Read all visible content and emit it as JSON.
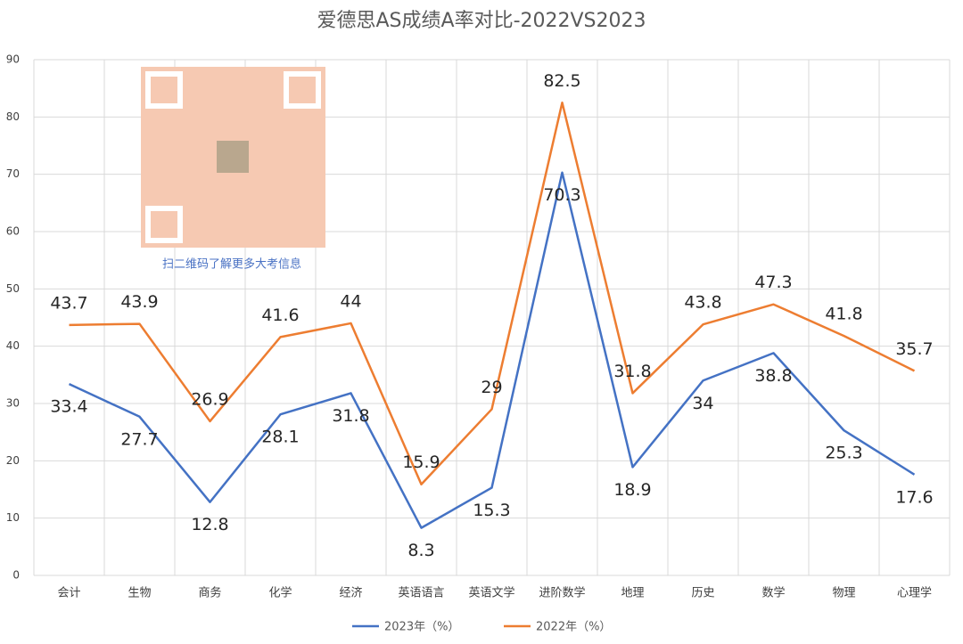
{
  "chart_data": {
    "type": "line",
    "title": "爱德思AS成绩A率对比-2022VS2023",
    "categories": [
      "会计",
      "生物",
      "商务",
      "化学",
      "经济",
      "英语语言",
      "英语文学",
      "进阶数学",
      "地理",
      "历史",
      "数学",
      "物理",
      "心理学"
    ],
    "series": [
      {
        "name": "2023年（%）",
        "color": "#4472c4",
        "values": [
          33.4,
          27.7,
          12.8,
          28.1,
          31.8,
          8.3,
          15.3,
          70.3,
          18.9,
          34,
          38.8,
          25.3,
          17.6
        ]
      },
      {
        "name": "2022年（%）",
        "color": "#ed7d31",
        "values": [
          43.7,
          43.9,
          26.9,
          41.6,
          44,
          15.9,
          29,
          82.5,
          31.8,
          43.8,
          47.3,
          41.8,
          35.7
        ]
      }
    ],
    "ylim": [
      0,
      90
    ],
    "yticks": [
      0,
      10,
      20,
      30,
      40,
      50,
      60,
      70,
      80,
      90
    ],
    "grid": true,
    "legend": "bottom",
    "annotation": "扫二维码了解更多大考信息"
  }
}
